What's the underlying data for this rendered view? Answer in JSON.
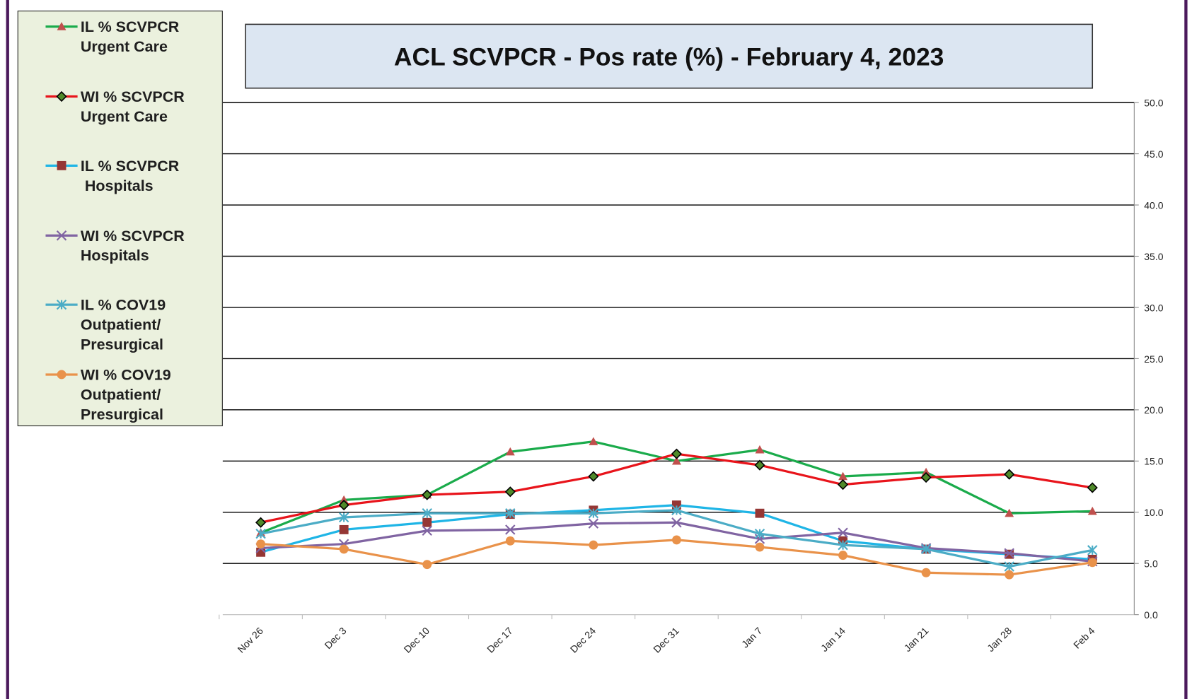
{
  "chart_data": {
    "type": "line",
    "title": "ACL SCVPCR -  Pos rate (%) - February 4, 2023",
    "categories": [
      "Nov 26",
      "Dec 3",
      "Dec 10",
      "Dec 17",
      "Dec 24",
      "Dec 31",
      "Jan 7",
      "Jan 14",
      "Jan 21",
      "Jan 28",
      "Feb 4"
    ],
    "series": [
      {
        "name": "IL % SCVPCR\nUrgent Care",
        "color": "#1aab4b",
        "marker": "triangle",
        "marker_color": "#c0504d",
        "values": [
          8.0,
          11.2,
          11.7,
          15.9,
          16.9,
          15.0,
          16.1,
          13.5,
          13.9,
          9.9,
          10.1
        ]
      },
      {
        "name": "WI % SCVPCR\nUrgent Care",
        "color": "#e8141b",
        "marker": "diamond",
        "marker_color": "#4f8a2a",
        "values": [
          9.0,
          10.7,
          11.7,
          12.0,
          13.5,
          15.7,
          14.6,
          12.7,
          13.4,
          13.7,
          12.4
        ]
      },
      {
        "name": "IL % SCVPCR\n Hospitals",
        "color": "#1fb5e6",
        "marker": "square",
        "marker_color": "#953735",
        "values": [
          6.1,
          8.3,
          9.0,
          9.8,
          10.2,
          10.7,
          9.9,
          7.2,
          6.4,
          5.9,
          5.4
        ]
      },
      {
        "name": "WI % SCVPCR\nHospitals",
        "color": "#8064a2",
        "marker": "x",
        "marker_color": "#8064a2",
        "values": [
          6.5,
          6.9,
          8.2,
          8.3,
          8.9,
          9.0,
          7.4,
          8.0,
          6.5,
          6.0,
          5.2
        ]
      },
      {
        "name": "IL % COV19\nOutpatient/\nPresurgical",
        "color": "#4bacc6",
        "marker": "asterisk",
        "marker_color": "#4bacc6",
        "values": [
          7.9,
          9.5,
          9.9,
          9.9,
          9.9,
          10.2,
          7.9,
          6.8,
          6.4,
          4.7,
          6.3
        ]
      },
      {
        "name": "WI % COV19\nOutpatient/\nPresurgical",
        "color": "#e9924a",
        "marker": "circle",
        "marker_color": "#e9924a",
        "values": [
          6.9,
          6.4,
          4.9,
          7.2,
          6.8,
          7.3,
          6.6,
          5.8,
          4.1,
          3.9,
          5.1
        ]
      }
    ],
    "ylim": [
      0,
      50
    ],
    "yticks": [
      {
        "value": 0,
        "label": "0.0"
      },
      {
        "value": 5,
        "label": "5.0"
      },
      {
        "value": 10,
        "label": "10.0"
      },
      {
        "value": 15,
        "label": "15.0"
      },
      {
        "value": 20,
        "label": "20.0"
      },
      {
        "value": 25,
        "label": "25.0"
      },
      {
        "value": 30,
        "label": "30.0"
      },
      {
        "value": 35,
        "label": "35.0"
      },
      {
        "value": 40,
        "label": "40.0"
      },
      {
        "value": 45,
        "label": "45.0"
      },
      {
        "value": 50,
        "label": "50.0"
      }
    ],
    "y_axis_side": "right",
    "grid": true,
    "legend": "left"
  }
}
